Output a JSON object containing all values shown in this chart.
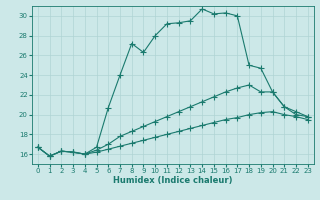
{
  "xlabel": "Humidex (Indice chaleur)",
  "bg_color": "#cce8e8",
  "line_color": "#1a7a6e",
  "grid_color": "#b0d4d4",
  "xlim": [
    -0.5,
    23.5
  ],
  "ylim": [
    15.0,
    31.0
  ],
  "yticks": [
    16,
    18,
    20,
    22,
    24,
    26,
    28,
    30
  ],
  "xticks": [
    0,
    1,
    2,
    3,
    4,
    5,
    6,
    7,
    8,
    9,
    10,
    11,
    12,
    13,
    14,
    15,
    16,
    17,
    18,
    19,
    20,
    21,
    22,
    23
  ],
  "line1_x": [
    0,
    1,
    2,
    3,
    4,
    5,
    6,
    7,
    8,
    9,
    10,
    11,
    12,
    13,
    14,
    15,
    16,
    17,
    18,
    19,
    20,
    21,
    22,
    23
  ],
  "line1_y": [
    16.7,
    15.8,
    16.3,
    16.2,
    16.0,
    16.7,
    20.7,
    24.0,
    27.2,
    26.3,
    28.0,
    29.2,
    29.3,
    29.5,
    30.7,
    30.2,
    30.3,
    30.0,
    25.0,
    24.7,
    22.3,
    20.8,
    20.0,
    19.8
  ],
  "line2_x": [
    0,
    1,
    2,
    3,
    4,
    5,
    6,
    7,
    8,
    9,
    10,
    11,
    12,
    13,
    14,
    15,
    16,
    17,
    18,
    19,
    20,
    21,
    22,
    23
  ],
  "line2_y": [
    16.7,
    15.8,
    16.3,
    16.2,
    16.0,
    16.4,
    17.0,
    17.8,
    18.3,
    18.8,
    19.3,
    19.8,
    20.3,
    20.8,
    21.3,
    21.8,
    22.3,
    22.7,
    23.0,
    22.3,
    22.3,
    20.8,
    20.3,
    19.8
  ],
  "line3_x": [
    0,
    1,
    2,
    3,
    4,
    5,
    6,
    7,
    8,
    9,
    10,
    11,
    12,
    13,
    14,
    15,
    16,
    17,
    18,
    19,
    20,
    21,
    22,
    23
  ],
  "line3_y": [
    16.7,
    15.8,
    16.3,
    16.2,
    16.0,
    16.2,
    16.5,
    16.8,
    17.1,
    17.4,
    17.7,
    18.0,
    18.3,
    18.6,
    18.9,
    19.2,
    19.5,
    19.7,
    20.0,
    20.2,
    20.3,
    20.0,
    19.8,
    19.5
  ]
}
